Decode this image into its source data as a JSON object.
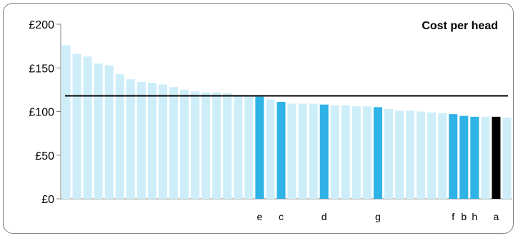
{
  "chart_data": {
    "type": "bar",
    "title": "Cost per head",
    "ylim": [
      0,
      200
    ],
    "yticks": [
      0,
      50,
      100,
      150,
      200
    ],
    "ytick_labels": [
      "£0",
      "£50",
      "£100",
      "£150",
      "£200"
    ],
    "reference_line": 118,
    "grid": false,
    "values": [
      176,
      166,
      163,
      155,
      153,
      143,
      137,
      134,
      133,
      131,
      128,
      125,
      123,
      122,
      122,
      121,
      119,
      118,
      117,
      114,
      111,
      109,
      109,
      109,
      108,
      107,
      107,
      106,
      106,
      105,
      103,
      101,
      101,
      100,
      99,
      98,
      97,
      95,
      94,
      94,
      94,
      93
    ],
    "labels": [
      "",
      "",
      "",
      "",
      "",
      "",
      "",
      "",
      "",
      "",
      "",
      "",
      "",
      "",
      "",
      "",
      "",
      "",
      "e",
      "",
      "c",
      "",
      "",
      "",
      "d",
      "",
      "",
      "",
      "",
      "g",
      "",
      "",
      "",
      "",
      "",
      "",
      "f",
      "b",
      "h",
      "",
      "a",
      ""
    ],
    "highlight": [
      "none",
      "none",
      "none",
      "none",
      "none",
      "none",
      "none",
      "none",
      "none",
      "none",
      "none",
      "none",
      "none",
      "none",
      "none",
      "none",
      "none",
      "none",
      "dark",
      "none",
      "dark",
      "none",
      "none",
      "none",
      "dark",
      "none",
      "none",
      "none",
      "none",
      "dark",
      "none",
      "none",
      "none",
      "none",
      "none",
      "none",
      "dark",
      "dark",
      "dark",
      "none",
      "black",
      "none"
    ],
    "colors": {
      "none": "#cdeef9",
      "dark": "#2fb2e6",
      "black": "#000000",
      "axis": "#808080",
      "reference_line": "#000000"
    }
  }
}
